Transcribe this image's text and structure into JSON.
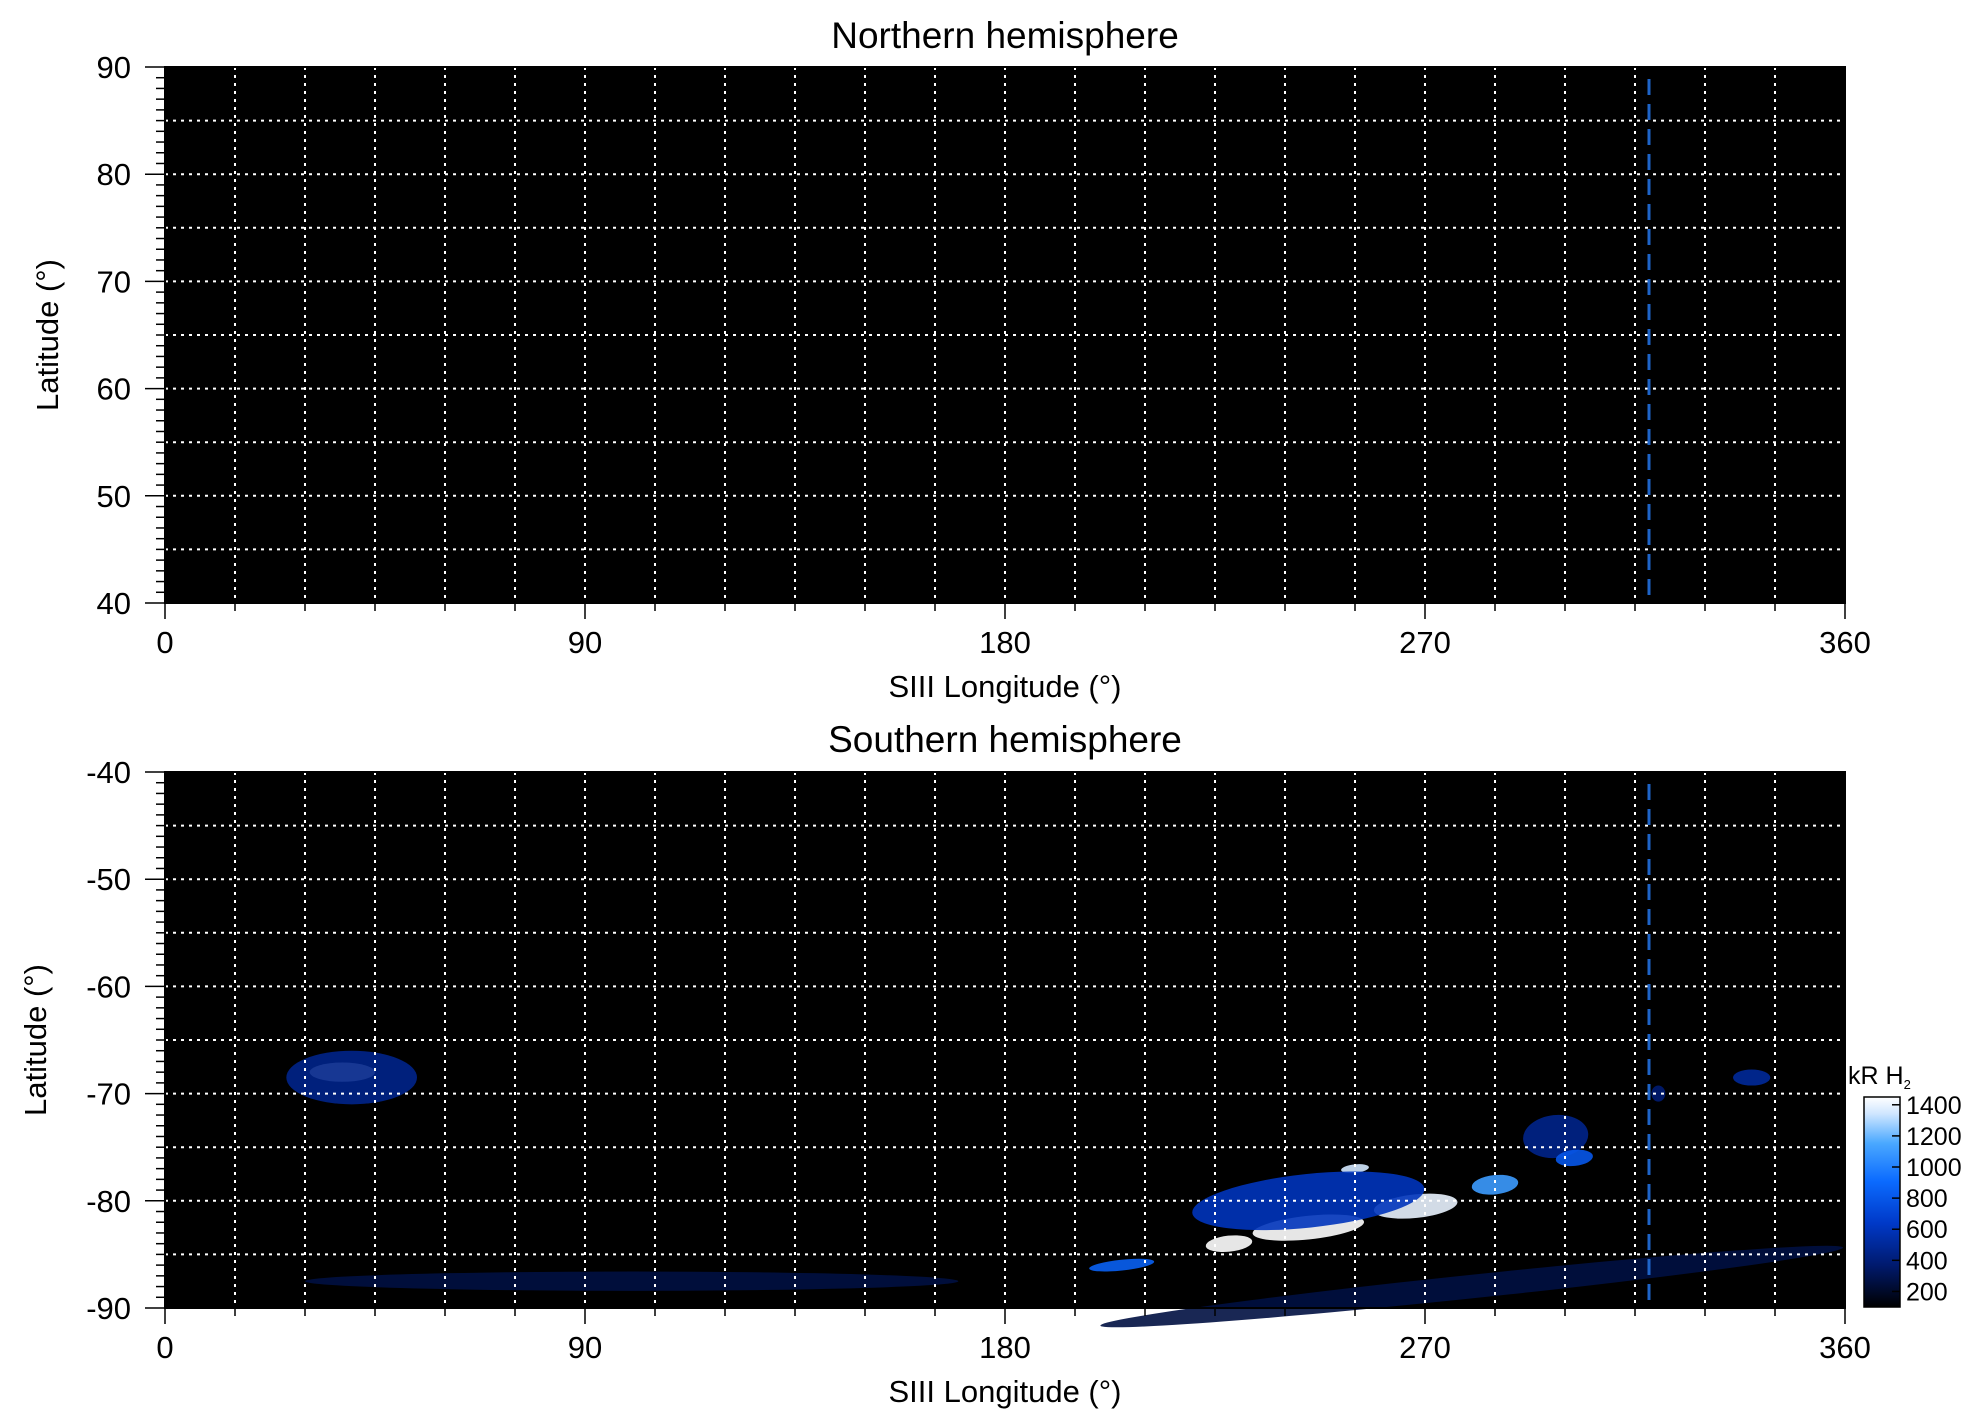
{
  "colors": {
    "background": "#000000",
    "grid": "#ffffff",
    "marker_line": "#1e64c8",
    "colormap": [
      "#000000",
      "#001a6e",
      "#0039c8",
      "#0b6bff",
      "#4aa8ff",
      "#cfe6ff",
      "#ffffff"
    ]
  },
  "colorbar": {
    "title": "kR H",
    "title_sub": "2",
    "ticks": [
      "1400",
      "1200",
      "1000",
      "800",
      "600",
      "400",
      "200"
    ],
    "tick_values": [
      1400,
      1200,
      1000,
      800,
      600,
      400,
      200
    ],
    "range": [
      100,
      1450
    ]
  },
  "chart_data": [
    {
      "type": "heatmap",
      "title": "Northern hemisphere",
      "xlabel": "SIII Longitude (°)",
      "ylabel": "Latitude (°)",
      "xlim": [
        0,
        360
      ],
      "ylim": [
        40,
        90
      ],
      "xticks": [
        0,
        90,
        180,
        270,
        360
      ],
      "yticks": [
        40,
        50,
        60,
        70,
        80,
        90
      ],
      "xticklabels": [
        "0",
        "90",
        "180",
        "270",
        "360"
      ],
      "yticklabels": [
        "40",
        "50",
        "60",
        "70",
        "80",
        "90"
      ],
      "x_grid_step": 15,
      "y_grid_step": 5,
      "grid": true,
      "marker_longitude": 318,
      "emission_regions": []
    },
    {
      "type": "heatmap",
      "title": "Southern hemisphere",
      "xlabel": "SIII Longitude (°)",
      "ylabel": "Latitude (°)",
      "xlim": [
        0,
        360
      ],
      "ylim": [
        -90,
        -40
      ],
      "xticks": [
        0,
        90,
        180,
        270,
        360
      ],
      "yticks": [
        -40,
        -50,
        -60,
        -70,
        -80,
        -90
      ],
      "xticklabels": [
        "0",
        "90",
        "180",
        "270",
        "360"
      ],
      "yticklabels": [
        "-40",
        "-50",
        "-60",
        "-70",
        "-80",
        "-90"
      ],
      "x_grid_step": 15,
      "y_grid_step": 5,
      "grid": true,
      "marker_longitude": 318,
      "emission_regions": [
        {
          "lon": 38,
          "lat": -68,
          "dlon": 14,
          "dlat": 1.8,
          "peak": 1450
        },
        {
          "lon": 40,
          "lat": -68.5,
          "dlon": 28,
          "dlat": 5,
          "peak": 450
        },
        {
          "lon": 228,
          "lat": -84,
          "dlon": 10,
          "dlat": 1.5,
          "peak": 1450
        },
        {
          "lon": 245,
          "lat": -82.5,
          "dlon": 24,
          "dlat": 2.2,
          "peak": 1450
        },
        {
          "lon": 268,
          "lat": -80.5,
          "dlon": 18,
          "dlat": 2.2,
          "peak": 1400
        },
        {
          "lon": 285,
          "lat": -78.5,
          "dlon": 10,
          "dlat": 1.8,
          "peak": 1100
        },
        {
          "lon": 255,
          "lat": -77,
          "dlon": 6,
          "dlat": 0.8,
          "peak": 1350
        },
        {
          "lon": 245,
          "lat": -80,
          "dlon": 50,
          "dlat": 5,
          "peak": 600
        },
        {
          "lon": 298,
          "lat": -74,
          "dlon": 14,
          "dlat": 4,
          "peak": 450
        },
        {
          "lon": 302,
          "lat": -76,
          "dlon": 8,
          "dlat": 1.5,
          "peak": 800
        },
        {
          "lon": 205,
          "lat": -86,
          "dlon": 14,
          "dlat": 1,
          "peak": 850
        },
        {
          "lon": 340,
          "lat": -68.5,
          "dlon": 8,
          "dlat": 1.5,
          "peak": 500
        },
        {
          "lon": 320,
          "lat": -70,
          "dlon": 3,
          "dlat": 1.5,
          "peak": 380
        },
        {
          "lon": 100,
          "lat": -87.5,
          "dlon": 140,
          "dlat": 1.8,
          "peak": 260
        },
        {
          "lon": 280,
          "lat": -88,
          "dlon": 160,
          "dlat": 2.2,
          "peak": 260
        }
      ]
    }
  ]
}
